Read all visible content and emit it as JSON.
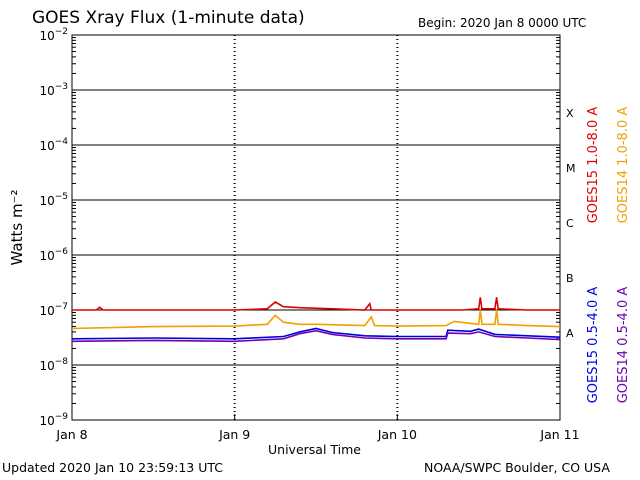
{
  "header": {
    "title": "GOES Xray Flux (1-minute data)",
    "begin": "Begin:  2020 Jan 8 0000 UTC"
  },
  "footer": {
    "updated": "Updated 2020 Jan 10 23:59:13 UTC",
    "credit": "NOAA/SWPC Boulder, CO USA"
  },
  "chart_data": {
    "type": "line",
    "title": "GOES Xray Flux (1-minute data)",
    "xlabel": "Universal Time",
    "ylabel": "Watts m⁻²",
    "y_scale": "log",
    "ylim": [
      1e-09,
      0.01
    ],
    "xlim_days": [
      0,
      3
    ],
    "x_ticks": [
      "Jan 8",
      "Jan 9",
      "Jan 10",
      "Jan 11"
    ],
    "y_tick_exponents": [
      -2,
      -3,
      -4,
      -5,
      -6,
      -7,
      -8,
      -9
    ],
    "flare_classes": [
      {
        "label": "X",
        "value": 0.0001
      },
      {
        "label": "M",
        "value": 1e-05
      },
      {
        "label": "C",
        "value": 1e-06
      },
      {
        "label": "B",
        "value": 1e-07
      },
      {
        "label": "A",
        "value": 1e-08
      }
    ],
    "series": [
      {
        "name": "GOES15 1.0-8.0 A",
        "color": "#e00000",
        "days": [
          0,
          0.15,
          0.17,
          0.19,
          0.5,
          1.0,
          1.2,
          1.25,
          1.3,
          1.4,
          1.6,
          1.8,
          1.83,
          1.84,
          1.86,
          2.0,
          2.2,
          2.3,
          2.4,
          2.5,
          2.51,
          2.52,
          2.55,
          2.6,
          2.61,
          2.62,
          2.8,
          3.0
        ],
        "values": [
          1e-07,
          1e-07,
          1.12e-07,
          1e-07,
          1e-07,
          1e-07,
          1.05e-07,
          1.4e-07,
          1.15e-07,
          1.1e-07,
          1.05e-07,
          1e-07,
          1.3e-07,
          1e-07,
          1e-07,
          1e-07,
          1e-07,
          1e-07,
          1e-07,
          1.05e-07,
          1.7e-07,
          1.05e-07,
          1.05e-07,
          1.05e-07,
          1.7e-07,
          1.05e-07,
          1e-07,
          1e-07
        ]
      },
      {
        "name": "GOES14 1.0-8.0 A",
        "color": "#f0a000",
        "days": [
          0,
          0.5,
          1.0,
          1.2,
          1.25,
          1.3,
          1.4,
          1.5,
          1.8,
          1.84,
          1.86,
          2.0,
          2.3,
          2.35,
          2.5,
          2.51,
          2.52,
          2.6,
          2.61,
          2.62,
          2.8,
          3.0
        ],
        "values": [
          4.6e-08,
          5e-08,
          5.1e-08,
          5.5e-08,
          8e-08,
          6e-08,
          5.5e-08,
          5.5e-08,
          5.2e-08,
          7.5e-08,
          5.2e-08,
          5.1e-08,
          5.2e-08,
          6.2e-08,
          5.5e-08,
          1e-07,
          5.5e-08,
          5.5e-08,
          1e-07,
          5.5e-08,
          5.2e-08,
          5e-08
        ]
      },
      {
        "name": "GOES15 0.5-4.0 A",
        "color": "#0000e0",
        "days": [
          0,
          0.5,
          1.0,
          1.3,
          1.4,
          1.5,
          1.6,
          1.8,
          2.0,
          2.3,
          2.31,
          2.45,
          2.5,
          2.6,
          2.8,
          3.0
        ],
        "values": [
          3e-08,
          3.1e-08,
          3e-08,
          3.3e-08,
          4e-08,
          4.6e-08,
          3.9e-08,
          3.4e-08,
          3.3e-08,
          3.3e-08,
          4.3e-08,
          4.1e-08,
          4.5e-08,
          3.6e-08,
          3.4e-08,
          3.2e-08
        ]
      },
      {
        "name": "GOES14 0.5-4.0 A",
        "color": "#7000b0",
        "days": [
          0,
          0.5,
          1.0,
          1.3,
          1.4,
          1.5,
          1.6,
          1.8,
          2.0,
          2.3,
          2.31,
          2.45,
          2.5,
          2.6,
          2.8,
          3.0
        ],
        "values": [
          2.7e-08,
          2.8e-08,
          2.7e-08,
          3e-08,
          3.7e-08,
          4.2e-08,
          3.6e-08,
          3.1e-08,
          3e-08,
          3e-08,
          3.8e-08,
          3.7e-08,
          4e-08,
          3.3e-08,
          3.1e-08,
          2.9e-08
        ]
      }
    ]
  }
}
